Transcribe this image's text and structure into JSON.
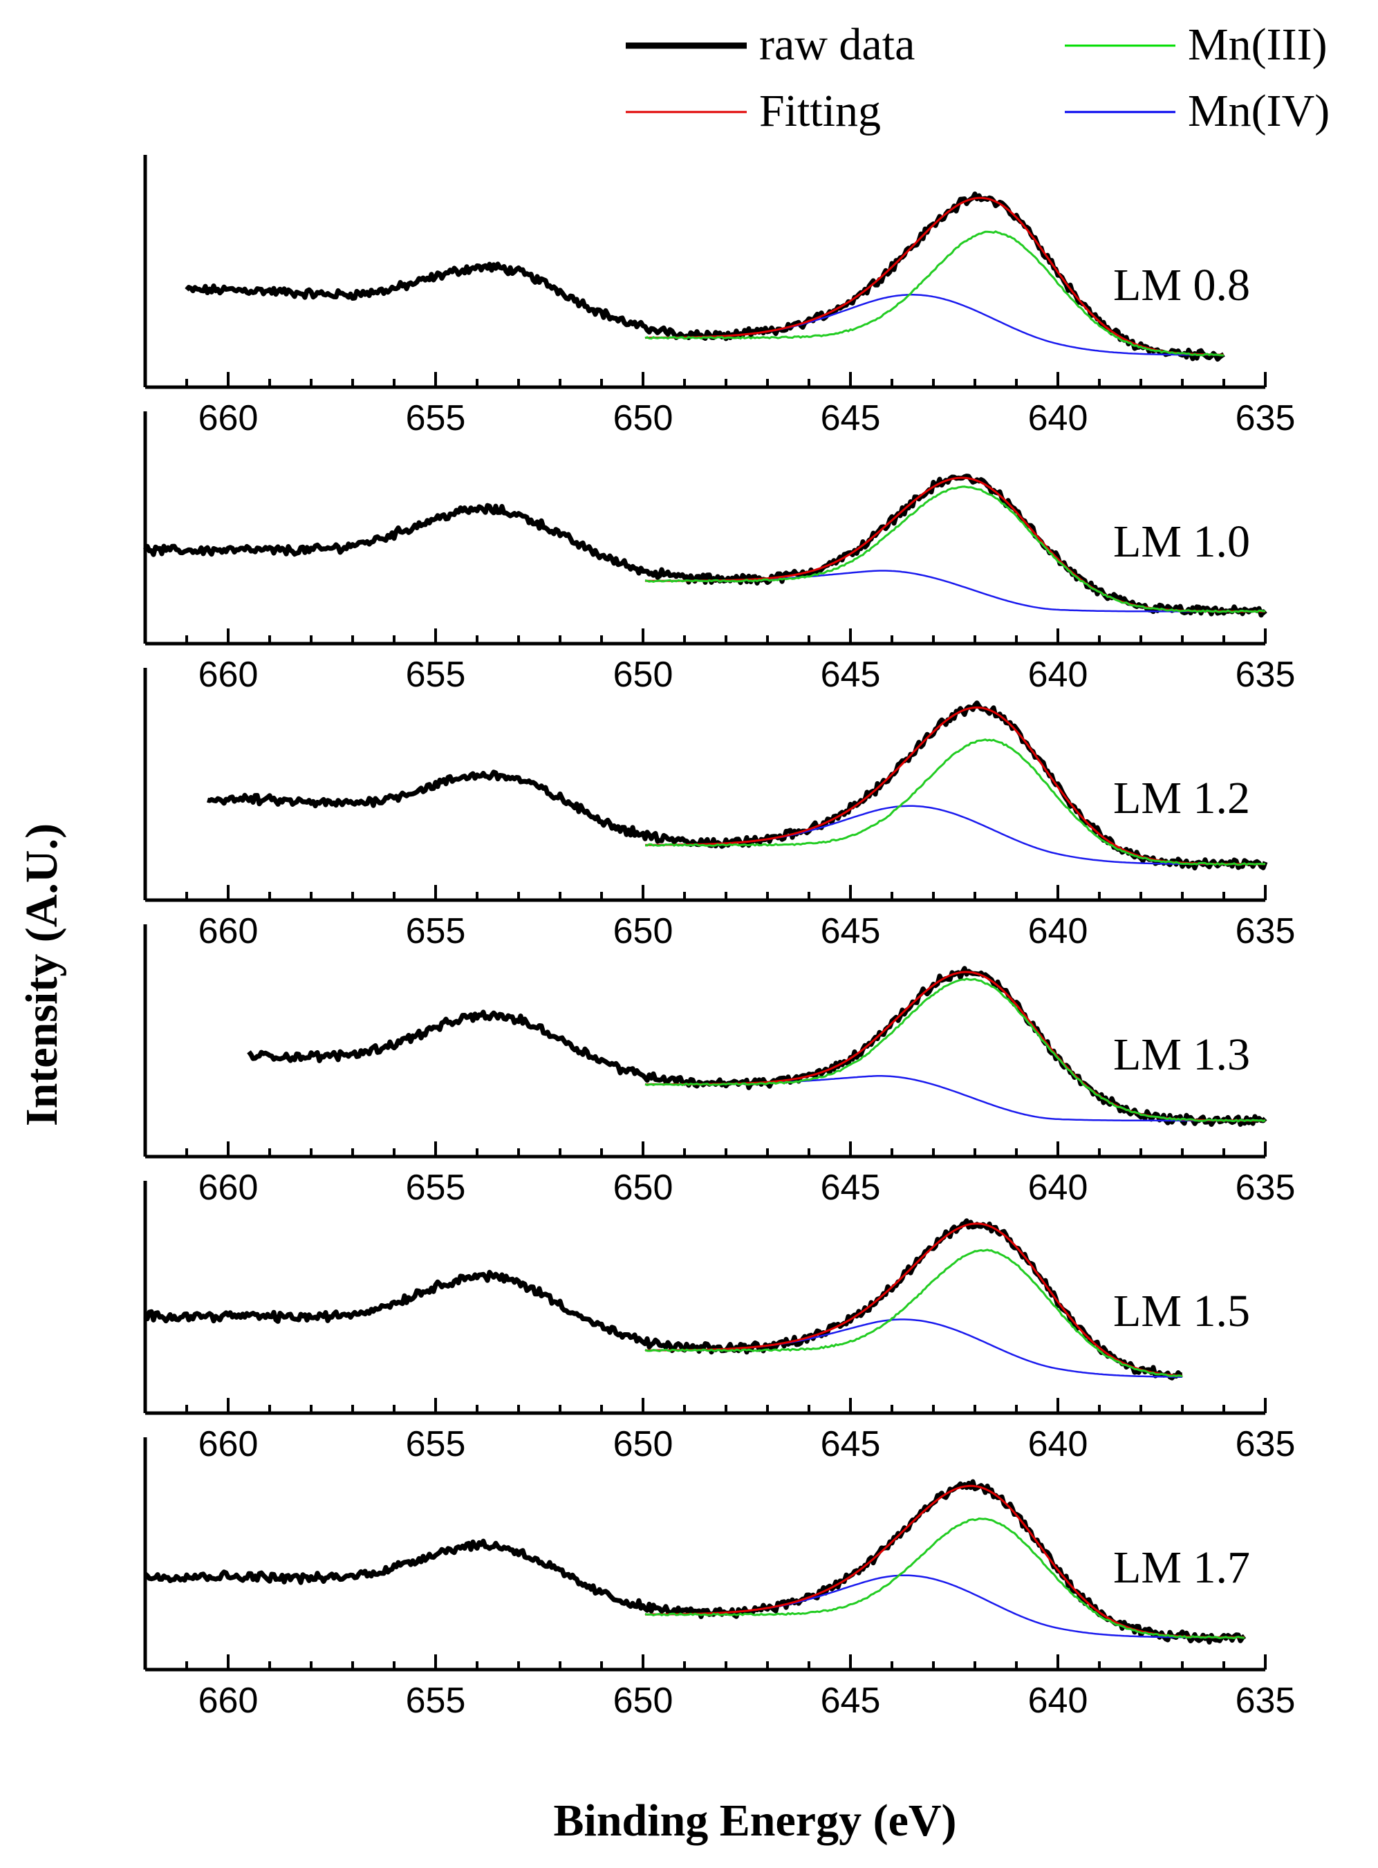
{
  "chart_data": {
    "type": "line",
    "xlabel": "Binding Energy (eV)",
    "ylabel": "Intensity (A.U.)",
    "xlim": [
      662,
      635
    ],
    "xticks": [
      660,
      655,
      650,
      645,
      640,
      635
    ],
    "grid": false,
    "legend": {
      "placement": "top",
      "entries": [
        {
          "name": "raw data",
          "color": "#000000",
          "style": "thick"
        },
        {
          "name": "Fitting",
          "color": "#e00000",
          "style": "thin"
        },
        {
          "name": "Mn(III)",
          "color": "#00dd00",
          "style": "thin"
        },
        {
          "name": "Mn(IV)",
          "color": "#0000ee",
          "style": "thin"
        }
      ]
    },
    "series_colors": {
      "raw": "#000000",
      "fit": "#e00000",
      "mn3": "#22cc22",
      "mn4": "#1a1aee"
    },
    "panels": [
      {
        "label": "LM 0.8",
        "raw_start": 661.0,
        "raw_end": 636.0,
        "base_left": 0.4,
        "base_mid": 0.15,
        "base_right": 0.06,
        "peak_2p1": {
          "center": 653.4,
          "height": 0.32,
          "width": 1.8
        },
        "mn3": {
          "center": 641.5,
          "height": 0.62,
          "width": 1.5
        },
        "mn4": {
          "center": 643.2,
          "height": 0.24,
          "width": 1.9
        }
      },
      {
        "label": "LM 1.0",
        "raw_start": 662.0,
        "raw_end": 635.0,
        "base_left": 0.38,
        "base_mid": 0.22,
        "base_right": 0.06,
        "peak_2p1": {
          "center": 653.6,
          "height": 0.34,
          "width": 1.9
        },
        "mn3": {
          "center": 642.0,
          "height": 0.58,
          "width": 1.6
        },
        "mn4": {
          "center": 643.5,
          "height": 0.06,
          "width": 1.8
        }
      },
      {
        "label": "LM 1.2",
        "raw_start": 660.5,
        "raw_end": 635.0,
        "base_left": 0.42,
        "base_mid": 0.18,
        "base_right": 0.08,
        "peak_2p1": {
          "center": 653.4,
          "height": 0.32,
          "width": 1.8
        },
        "mn3": {
          "center": 641.6,
          "height": 0.62,
          "width": 1.5
        },
        "mn4": {
          "center": 643.2,
          "height": 0.22,
          "width": 1.9
        }
      },
      {
        "label": "LM 1.3",
        "raw_start": 659.5,
        "raw_end": 635.0,
        "base_left": 0.42,
        "base_mid": 0.27,
        "base_right": 0.08,
        "peak_2p1": {
          "center": 653.5,
          "height": 0.33,
          "width": 1.8
        },
        "mn3": {
          "center": 641.9,
          "height": 0.66,
          "width": 1.6
        },
        "mn4": {
          "center": 643.5,
          "height": 0.05,
          "width": 1.8
        }
      },
      {
        "label": "LM 1.5",
        "raw_start": 662.0,
        "raw_end": 637.0,
        "base_left": 0.4,
        "base_mid": 0.22,
        "base_right": 0.08,
        "peak_2p1": {
          "center": 653.6,
          "height": 0.35,
          "width": 1.8
        },
        "mn3": {
          "center": 641.6,
          "height": 0.62,
          "width": 1.5
        },
        "mn4": {
          "center": 643.2,
          "height": 0.18,
          "width": 1.9
        }
      },
      {
        "label": "LM 1.7",
        "raw_start": 662.0,
        "raw_end": 635.5,
        "base_left": 0.38,
        "base_mid": 0.18,
        "base_right": 0.06,
        "peak_2p1": {
          "center": 653.6,
          "height": 0.32,
          "width": 1.8
        },
        "mn3": {
          "center": 641.7,
          "height": 0.58,
          "width": 1.5
        },
        "mn4": {
          "center": 643.3,
          "height": 0.22,
          "width": 1.9
        }
      }
    ]
  }
}
